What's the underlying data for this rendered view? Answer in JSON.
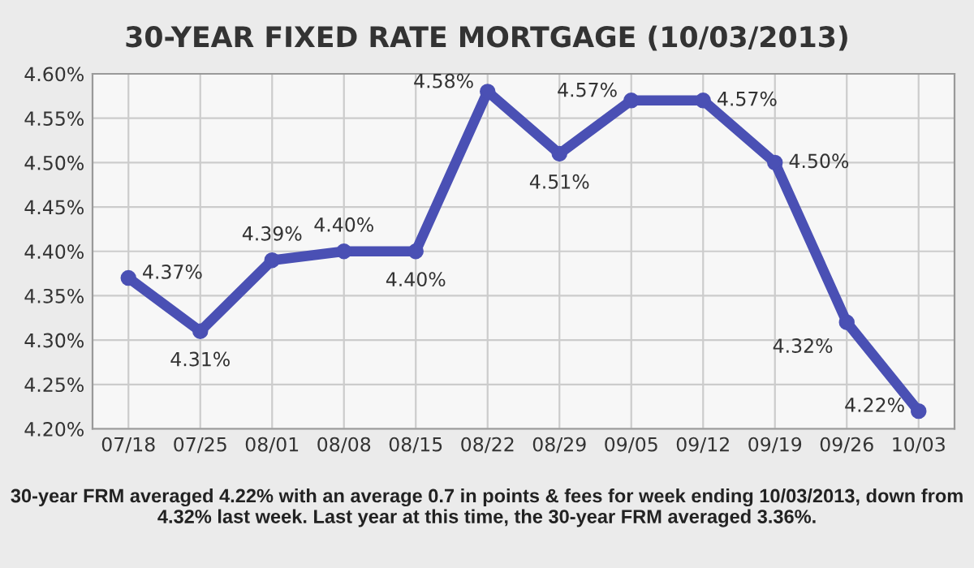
{
  "chart_data": {
    "type": "line",
    "title": "30-YEAR FIXED RATE MORTGAGE (10/03/2013)",
    "categories": [
      "07/18",
      "07/25",
      "08/01",
      "08/08",
      "08/15",
      "08/22",
      "08/29",
      "09/05",
      "09/12",
      "09/19",
      "09/26",
      "10/03"
    ],
    "series": [
      {
        "color": "#4a50b4",
        "values": [
          4.37,
          4.31,
          4.39,
          4.4,
          4.4,
          4.58,
          4.51,
          4.57,
          4.57,
          4.5,
          4.32,
          4.22
        ]
      }
    ],
    "ylim": [
      4.2,
      4.6
    ],
    "yticks": [
      {
        "value": 4.2,
        "label": "4.20%"
      },
      {
        "value": 4.25,
        "label": "4.25%"
      },
      {
        "value": 4.3,
        "label": "4.30%"
      },
      {
        "value": 4.35,
        "label": "4.35%"
      },
      {
        "value": 4.4,
        "label": "4.40%"
      },
      {
        "value": 4.45,
        "label": "4.45%"
      },
      {
        "value": 4.5,
        "label": "4.50%"
      },
      {
        "value": 4.55,
        "label": "4.55%"
      },
      {
        "value": 4.6,
        "label": "4.60%"
      }
    ],
    "value_labels": [
      "4.37%",
      "4.31%",
      "4.39%",
      "4.40%",
      "4.40%",
      "4.58%",
      "4.51%",
      "4.57%",
      "4.57%",
      "4.50%",
      "4.32%",
      "4.22%"
    ],
    "grid": true,
    "marker": "circle",
    "line_style": "solid",
    "annotations": [
      "30-year FRM averaged 4.22% with an average 0.7 in points & fees for week ending 10/03/2013, down from 4.32% last week. Last year at this time, the 30-year FRM averaged 3.36%."
    ]
  }
}
